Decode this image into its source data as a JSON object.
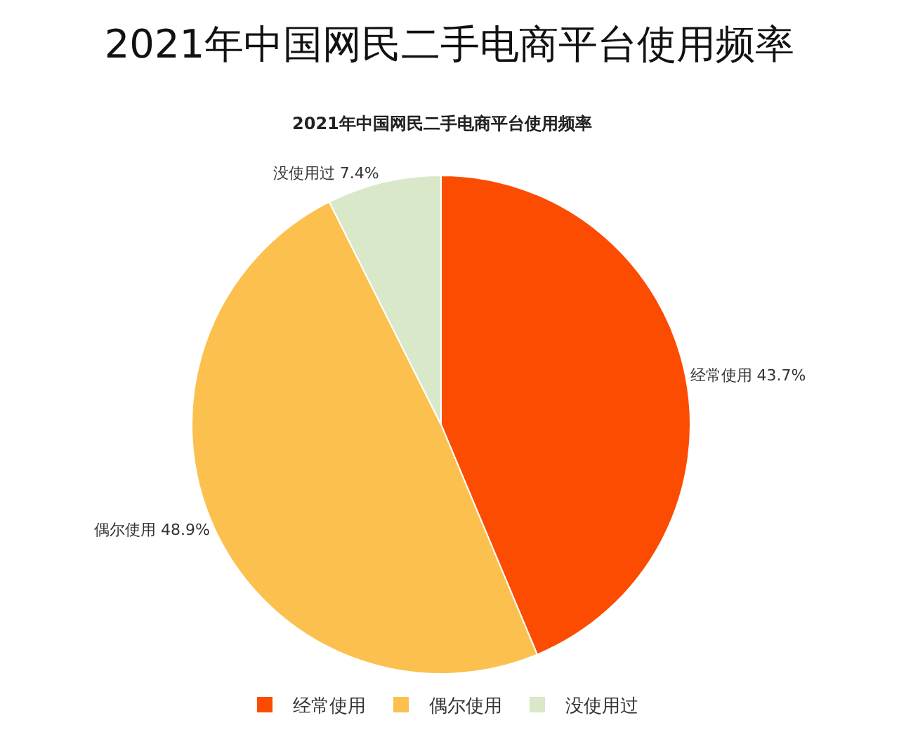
{
  "chart_data": {
    "type": "pie",
    "title": "2021年中国网民二手电商平台使用频率",
    "subtitle": "2021年中国网民二手电商平台使用频率",
    "categories": [
      "经常使用",
      "偶尔使用",
      "没使用过"
    ],
    "values": [
      43.7,
      48.9,
      7.4
    ],
    "value_labels": [
      "43.7%",
      "48.9%",
      "7.4%"
    ],
    "colors": [
      "#fc4c02",
      "#fcc04f",
      "#d9e8c8"
    ],
    "legend": "bottom"
  }
}
